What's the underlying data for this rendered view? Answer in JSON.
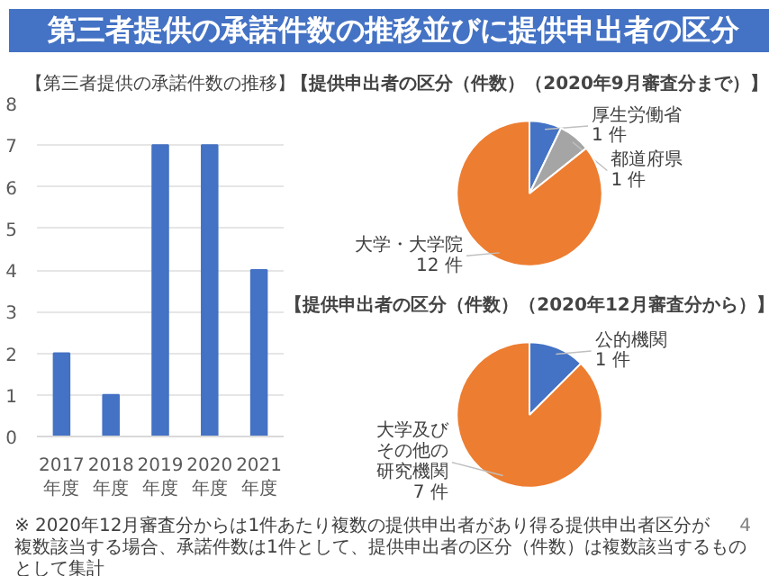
{
  "chart_data": [
    {
      "type": "bar",
      "title": "第三者提供の承諾件数の推移並びに提供申出者の区分",
      "subtitle": "【第三者提供の承諾件数の推移】",
      "categories": [
        "2017年度",
        "2018年度",
        "2019年度",
        "2020年度",
        "2021年度"
      ],
      "values": [
        2,
        1,
        7,
        7,
        4
      ],
      "color": "#4472c4",
      "ylim": [
        0,
        8
      ],
      "yticks": [
        0,
        1,
        2,
        3,
        4,
        5,
        6,
        7,
        8
      ],
      "grid": "y"
    },
    {
      "type": "pie",
      "title": "【提供申出者の区分（件数）（2020年9月審査分まで）】",
      "categories": [
        "厚生労働省",
        "都道府県",
        "大学・大学院"
      ],
      "values": [
        1,
        1,
        12
      ],
      "value_labels": [
        "1 件",
        "1 件",
        "12 件"
      ],
      "colors": [
        "#4472c4",
        "#a5a5a5",
        "#ed7d31"
      ]
    },
    {
      "type": "pie",
      "title": "【提供申出者の区分（件数）（2020年12月審査分から）】",
      "categories": [
        "公的機関",
        "大学及びその他の研究機関"
      ],
      "values": [
        1,
        7
      ],
      "value_labels": [
        "1 件",
        "7 件"
      ],
      "colors": [
        "#4472c4",
        "#ed7d31"
      ],
      "annotations": [
        "※ 2020年12月審査分からは1件あたり複数の提供申出者があり得る提供申出者区分が複数該当する場合、承諾件数は1件として、提供申出者の区分（件数）は複数該当するものとして集計",
        "4"
      ]
    }
  ]
}
